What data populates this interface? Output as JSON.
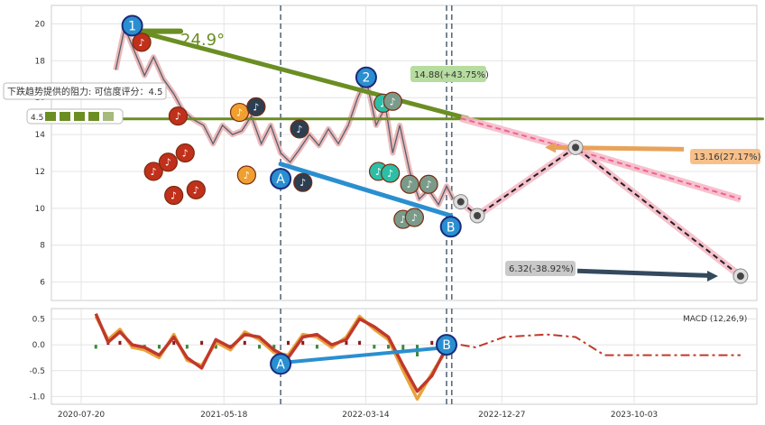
{
  "chart_data": [
    {
      "type": "line",
      "panel": "price",
      "ylim": [
        5,
        21
      ],
      "yticks": [
        6,
        8,
        10,
        12,
        14,
        16,
        18,
        20
      ],
      "series": [
        {
          "color": "#556070",
          "x": [
            "2020-10-01",
            "2020-10-20",
            "2020-11-10",
            "2020-12-01",
            "2020-12-20",
            "2021-01-10",
            "2021-02-01",
            "2021-02-20",
            "2021-03-15",
            "2021-04-05",
            "2021-04-25",
            "2021-05-15",
            "2021-06-05",
            "2021-06-25",
            "2021-07-15",
            "2021-08-05",
            "2021-08-25",
            "2021-09-15",
            "2021-10-05",
            "2021-10-25",
            "2021-11-15",
            "2021-12-05",
            "2021-12-25",
            "2022-01-15",
            "2022-02-05",
            "2022-02-25",
            "2022-03-15",
            "2022-04-05",
            "2022-04-25",
            "2022-05-10",
            "2022-05-25",
            "2022-06-15",
            "2022-07-05",
            "2022-07-25",
            "2022-08-15",
            "2022-09-01",
            "2022-09-15"
          ],
          "values": [
            17.5,
            19.8,
            18.5,
            17.2,
            18.2,
            17.0,
            16.2,
            15.3,
            14.8,
            14.5,
            13.5,
            14.5,
            14.0,
            14.2,
            15.0,
            13.5,
            14.5,
            13.0,
            12.5,
            13.2,
            14.0,
            13.4,
            14.3,
            13.5,
            14.5,
            16.0,
            17.0,
            14.5,
            15.5,
            13.0,
            14.5,
            12.0,
            10.5,
            11.0,
            10.2,
            11.2,
            10.5
          ]
        }
      ],
      "forecast": [
        {
          "color": "#f06292",
          "x": [
            "2022-10-01",
            "2023-06-01",
            "2024-05-15"
          ],
          "values": [
            14.88,
            13.16,
            10.5
          ],
          "dashed": true
        },
        {
          "color": "#222222",
          "x": [
            "2022-10-01",
            "2022-11-05",
            "2023-06-01",
            "2024-05-15"
          ],
          "values": [
            10.35,
            9.6,
            13.3,
            6.32
          ],
          "dashed": true
        }
      ],
      "trendlines": [
        {
          "color": "#6b8e23",
          "x": [
            "2020-11-01",
            "2022-10-15"
          ],
          "values": [
            19.7,
            14.88
          ]
        },
        {
          "color": "#6b8e23",
          "x": [
            "2020-07-01",
            "2024-07-01"
          ],
          "values": [
            14.85,
            14.85
          ]
        },
        {
          "color": "#6b8e23",
          "x": [
            "2020-11-01",
            "2021-02-15"
          ],
          "values": [
            19.6,
            19.6
          ]
        },
        {
          "color": "#2a8fd0",
          "x": [
            "2021-09-15",
            "2022-09-10"
          ],
          "values": [
            12.4,
            9.6
          ]
        }
      ],
      "vlines": [
        "2021-09-15",
        "2022-09-01",
        "2022-09-12"
      ],
      "annotations": [
        {
          "text": "14.88(+43.75%)",
          "color": "#b7dca0"
        },
        {
          "text": "13.16(27.17%)",
          "color": "#f7c08a"
        },
        {
          "text": "6.32(-38.92%)",
          "color": "#c9c9c9"
        },
        {
          "text": "24.9°",
          "color": "#6b8e23"
        },
        {
          "text": "下跌趋势提供的阻力: 可信度评分：4.5"
        },
        {
          "text": "4.5"
        }
      ],
      "point_labels": [
        "1",
        "2",
        "A",
        "B"
      ]
    },
    {
      "type": "line",
      "panel": "macd",
      "legend": "MACD (12,26,9)",
      "ylim": [
        -1.15,
        0.7
      ],
      "yticks": [
        -1.0,
        -0.5,
        0.0,
        0.5
      ],
      "series": [
        {
          "color": "#e8a33d",
          "x": [
            "2020-08-20",
            "2020-09-15",
            "2020-10-10",
            "2020-11-05",
            "2020-12-01",
            "2021-01-01",
            "2021-02-01",
            "2021-03-01",
            "2021-04-01",
            "2021-05-01",
            "2021-06-01",
            "2021-07-01",
            "2021-08-01",
            "2021-09-01",
            "2021-10-01",
            "2021-11-01",
            "2021-12-01",
            "2022-01-01",
            "2022-02-01",
            "2022-03-01",
            "2022-04-01",
            "2022-05-01",
            "2022-06-01",
            "2022-07-01",
            "2022-08-01",
            "2022-09-01"
          ],
          "values": [
            0.55,
            0.1,
            0.3,
            -0.05,
            -0.1,
            -0.25,
            0.2,
            -0.3,
            -0.4,
            0.05,
            -0.1,
            0.25,
            0.1,
            -0.15,
            -0.2,
            0.2,
            0.15,
            -0.05,
            0.15,
            0.55,
            0.3,
            0.1,
            -0.5,
            -1.05,
            -0.55,
            -0.1
          ]
        },
        {
          "color": "#c0392b",
          "x": [
            "2020-08-20",
            "2020-09-15",
            "2020-10-10",
            "2020-11-05",
            "2020-12-01",
            "2021-01-01",
            "2021-02-01",
            "2021-03-01",
            "2021-04-01",
            "2021-05-01",
            "2021-06-01",
            "2021-07-01",
            "2021-08-01",
            "2021-09-01",
            "2021-10-01",
            "2021-11-01",
            "2021-12-01",
            "2022-01-01",
            "2022-02-01",
            "2022-03-01",
            "2022-04-01",
            "2022-05-01",
            "2022-06-01",
            "2022-07-01",
            "2022-08-01",
            "2022-09-01"
          ],
          "values": [
            0.6,
            0.05,
            0.25,
            0.0,
            -0.05,
            -0.2,
            0.15,
            -0.25,
            -0.45,
            0.1,
            -0.05,
            0.2,
            0.15,
            -0.1,
            -0.25,
            0.15,
            0.2,
            0.0,
            0.1,
            0.5,
            0.35,
            0.15,
            -0.4,
            -0.9,
            -0.6,
            -0.05
          ]
        }
      ],
      "forecast": [
        {
          "color": "#c0392b",
          "x": [
            "2022-10-01",
            "2022-11-01",
            "2023-01-01",
            "2023-04-01",
            "2023-06-01",
            "2023-08-01",
            "2024-05-15"
          ],
          "values": [
            0.0,
            -0.05,
            0.15,
            0.2,
            0.15,
            -0.2,
            -0.2
          ],
          "dashed": true
        }
      ],
      "trendlines": [
        {
          "color": "#2a8fd0",
          "x": [
            "2021-09-15",
            "2022-09-01"
          ],
          "values": [
            -0.35,
            -0.05
          ]
        }
      ],
      "point_labels": [
        "A",
        "B"
      ]
    }
  ],
  "x_ticks": [
    "2020-07-20",
    "2021-05-18",
    "2022-03-14",
    "2022-12-27",
    "2023-10-03"
  ],
  "colors": {
    "price_line": "#556070",
    "up_candle_trend": "#e8a7a7",
    "resistance": "#6b8e23",
    "support": "#2a8fd0",
    "pink_forecast": "#f06292",
    "orange_arrow": "#e8a35a",
    "dark_arrow": "#34495e"
  }
}
